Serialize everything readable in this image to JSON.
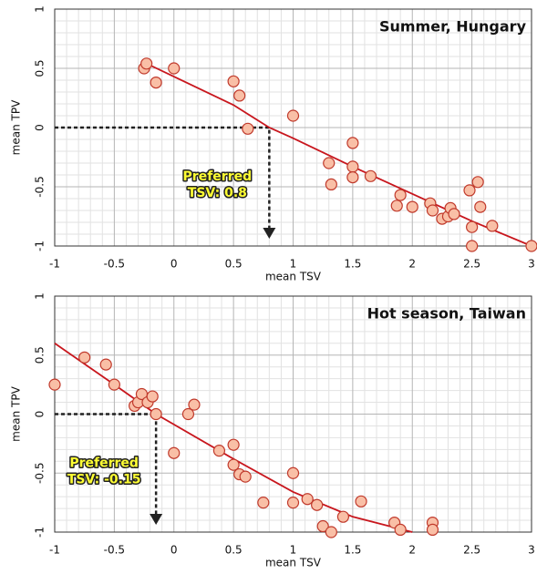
{
  "chart_data": [
    {
      "type": "scatter",
      "title": "Summer, Hungary",
      "x_label": "mean TSV",
      "y_label": "mean TPV",
      "x": [
        -0.25,
        -0.23,
        -0.15,
        0,
        0.5,
        0.55,
        0.62,
        1,
        1.3,
        1.32,
        1.5,
        1.5,
        1.5,
        1.65,
        1.87,
        1.9,
        2,
        2.15,
        2.17,
        2.25,
        2.3,
        2.32,
        2.35,
        2.48,
        2.5,
        2.5,
        2.55,
        2.57,
        2.67,
        3
      ],
      "values": [
        0.5,
        0.54,
        0.38,
        0.5,
        0.39,
        0.27,
        -0.01,
        0.1,
        -0.3,
        -0.48,
        -0.13,
        -0.33,
        -0.42,
        -0.41,
        -0.66,
        -0.57,
        -0.67,
        -0.64,
        -0.7,
        -0.77,
        -0.75,
        -0.68,
        -0.73,
        -0.53,
        -0.84,
        -1.0,
        -0.46,
        -0.67,
        -0.83,
        -1.0
      ],
      "color": "#f9bfa6",
      "edge_color": "#c0392b",
      "fit": {
        "x": [
          -0.25,
          0,
          0.5,
          0.8,
          1,
          1.5,
          2,
          2.5,
          3
        ],
        "values": [
          0.55,
          0.43,
          0.19,
          0,
          -0.09,
          -0.33,
          -0.56,
          -0.79,
          -1.0
        ],
        "color": "#c8161d"
      },
      "annotation": {
        "text": [
          "Preferred",
          "TSV: 0.8"
        ],
        "x": 0.8,
        "y": 0
      },
      "xlim": [
        -1,
        3
      ],
      "ylim": [
        -1,
        1
      ],
      "xticks": [
        -1,
        -0.5,
        0,
        0.5,
        1,
        1.5,
        2,
        2.5,
        3
      ],
      "yticks": [
        -1,
        -0.5,
        0,
        0.5,
        1
      ],
      "grid": true
    },
    {
      "type": "scatter",
      "title": "Hot season, Taiwan",
      "x_label": "mean TSV",
      "y_label": "mean TPV",
      "x": [
        -1,
        -0.75,
        -0.57,
        -0.5,
        -0.33,
        -0.3,
        -0.27,
        -0.22,
        -0.18,
        -0.15,
        0,
        0.12,
        0.17,
        0.38,
        0.5,
        0.5,
        0.55,
        0.6,
        0.75,
        1,
        1,
        1.12,
        1.2,
        1.25,
        1.32,
        1.42,
        1.57,
        1.85,
        1.9,
        2.17,
        2.17
      ],
      "values": [
        0.25,
        0.48,
        0.42,
        0.25,
        0.07,
        0.1,
        0.17,
        0.1,
        0.15,
        0,
        -0.33,
        0,
        0.08,
        -0.31,
        -0.26,
        -0.43,
        -0.51,
        -0.53,
        -0.75,
        -0.5,
        -0.75,
        -0.72,
        -0.77,
        -0.95,
        -1.0,
        -0.87,
        -0.74,
        -0.92,
        -0.98,
        -0.92,
        -0.98
      ],
      "color": "#f9bfa6",
      "edge_color": "#c0392b",
      "fit": {
        "x": [
          -1,
          -0.5,
          -0.15,
          0.5,
          1,
          1.5,
          2
        ],
        "values": [
          0.6,
          0.25,
          0,
          -0.38,
          -0.66,
          -0.87,
          -1.0
        ],
        "color": "#c8161d"
      },
      "annotation": {
        "text": [
          "Preferred",
          "TSV: -0.15"
        ],
        "x": -0.15,
        "y": 0
      },
      "xlim": [
        -1,
        3
      ],
      "ylim": [
        -1,
        1
      ],
      "xticks": [
        -1,
        -0.5,
        0,
        0.5,
        1,
        1.5,
        2,
        2.5,
        3
      ],
      "yticks": [
        -1,
        -0.5,
        0,
        0.5,
        1
      ],
      "grid": true
    }
  ]
}
